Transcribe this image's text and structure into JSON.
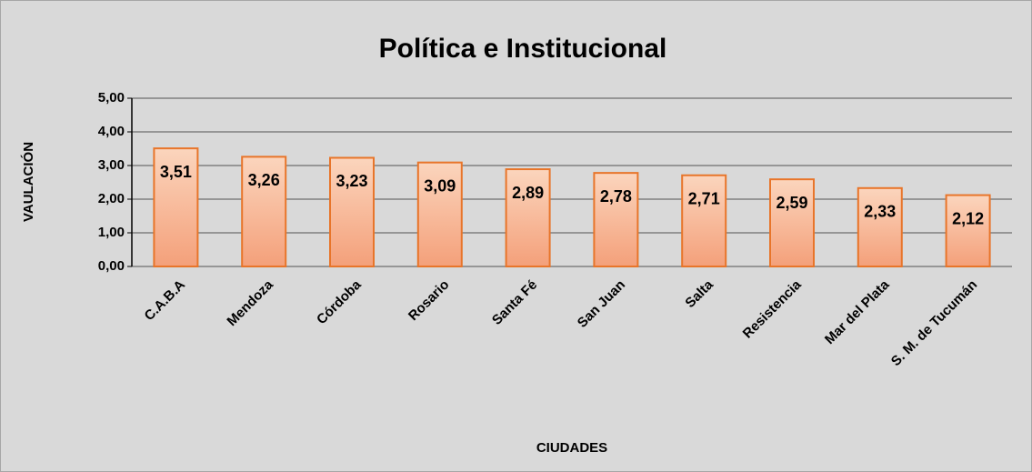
{
  "chart_data": {
    "type": "bar",
    "title": "Política e Institucional",
    "x_label": "CIUDADES",
    "y_label": "VAULACIÓN",
    "categories": [
      "C.A.B.A",
      "Mendoza",
      "Córdoba",
      "Rosario",
      "Santa Fé",
      "San Juan",
      "Salta",
      "Resistencia",
      "Mar del Plata",
      "S. M. de Tucumán"
    ],
    "values": [
      3.51,
      3.26,
      3.23,
      3.09,
      2.89,
      2.78,
      2.71,
      2.59,
      2.33,
      2.12
    ],
    "value_labels": [
      "3,51",
      "3,26",
      "3,23",
      "3,09",
      "2,89",
      "2,78",
      "2,71",
      "2,59",
      "2,33",
      "2,12"
    ],
    "color": "#f6ad86",
    "ylim": [
      0,
      5
    ],
    "yticks": [
      {
        "value": 0,
        "label": "0,00"
      },
      {
        "value": 1,
        "label": "1,00"
      },
      {
        "value": 2,
        "label": "2,00"
      },
      {
        "value": 3,
        "label": "3,00"
      },
      {
        "value": 4,
        "label": "4,00"
      },
      {
        "value": 5,
        "label": "5,00"
      }
    ],
    "grid": true
  }
}
